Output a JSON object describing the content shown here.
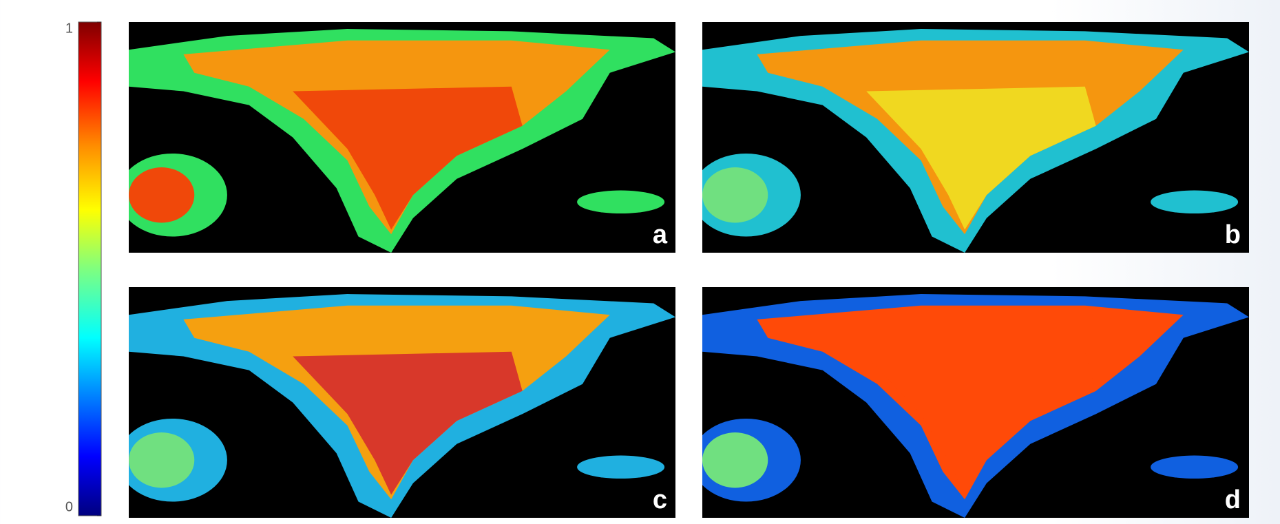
{
  "colorbar": {
    "lim": [
      0,
      1
    ],
    "ticks": [
      0,
      1
    ]
  },
  "panels": [
    {
      "label": "a"
    },
    {
      "label": "b"
    },
    {
      "label": "c"
    },
    {
      "label": "d"
    }
  ]
}
